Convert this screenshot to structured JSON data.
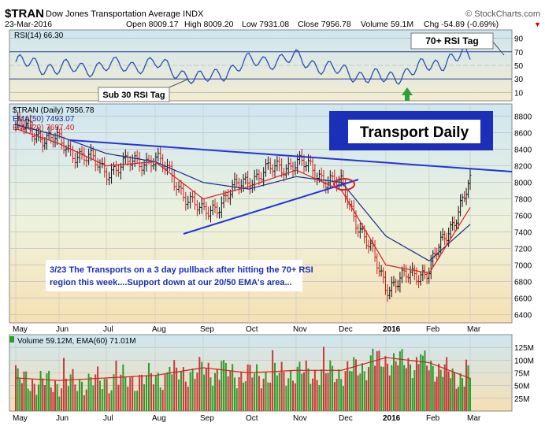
{
  "header": {
    "symbol": "$TRAN",
    "name": "Dow Jones Transportation Average INDX",
    "credit": "© StockCharts.com",
    "date": "23-Mar-2016",
    "open": "Open 8009.17",
    "high": "High 8009.20",
    "low": "Low 7931.08",
    "close": "Close 7956.78",
    "volume": "Volume 59.1M",
    "chg": "Chg -54.89 (-0.69%)",
    "chg_arrow": "▼"
  },
  "colors": {
    "rsi_line": "#2a4fb5",
    "price_up": "#111111",
    "ema50": "#1a2a8a",
    "ema20": "#d42020",
    "trendline": "#2233dd",
    "vol_up": "#2e9a2e",
    "vol_down": "#c43a3a",
    "vol_ema": "#cc2222",
    "title_box": "#1b2fb8",
    "arrow": "#2e9e3a"
  },
  "rsi_panel": {
    "legend": "RSI(14) 66.30",
    "ticks": [
      "90",
      "70",
      "50",
      "30",
      "10"
    ],
    "callout_top": "70+ RSI Tag",
    "callout_bottom": "Sub 30 RSI Tag"
  },
  "price_panel": {
    "legend_main": "$TRAN (Daily) 7956.78",
    "legend_ema50": "EMA(50) 7493.07",
    "legend_ema20": "EMA(20) 7697.40",
    "title_box": "Transport Daily",
    "y_ticks": [
      "8800",
      "8600",
      "8400",
      "8200",
      "8000",
      "7800",
      "7600",
      "7400",
      "7200",
      "7000",
      "6800",
      "6600",
      "6400"
    ],
    "comment": "3/23  The Transports on a 3 day pullback after hitting the 70+ RSI region this week....Support down at our 20/50 EMA's area...",
    "comment_line1": "3/23  The Transports on a 3 day pullback after hitting the 70+ RSI",
    "comment_line2": "region this week....Support down at our 20/50 EMA's area..."
  },
  "volume_panel": {
    "legend": "Volume 59.12M, EMA(60) 71.01M",
    "y_ticks": [
      "125M",
      "100M",
      "75M",
      "50M",
      "25M"
    ]
  },
  "x_axis": {
    "labels": [
      "May",
      "Jun",
      "Jul",
      "Aug",
      "Sep",
      "Oct",
      "Nov",
      "Dec",
      "2016",
      "Feb",
      "Mar"
    ]
  },
  "chart_data": {
    "type": "line",
    "series_kind": "OHLC bars with EMA overlays, RSI and volume sub-panels",
    "x": [
      "2015-05",
      "2015-06",
      "2015-07",
      "2015-08",
      "2015-09",
      "2015-10",
      "2015-11",
      "2015-12",
      "2016-01",
      "2016-02",
      "2016-03"
    ],
    "series": [
      {
        "name": "$TRAN (Daily)",
        "values": [
          8700,
          8480,
          8150,
          8300,
          7600,
          8050,
          8250,
          7950,
          6750,
          6950,
          7960
        ]
      },
      {
        "name": "EMA(50)",
        "values": [
          8700,
          8560,
          8350,
          8250,
          8000,
          7920,
          8070,
          8000,
          7350,
          7050,
          7493
        ]
      },
      {
        "name": "EMA(20)",
        "values": [
          8650,
          8470,
          8200,
          8250,
          7800,
          7950,
          8150,
          7900,
          7000,
          6900,
          7697
        ]
      }
    ],
    "rsi_values": [
      55,
      45,
      48,
      52,
      28,
      55,
      60,
      40,
      30,
      50,
      66
    ],
    "volume_m": [
      60,
      55,
      60,
      65,
      80,
      70,
      75,
      75,
      100,
      90,
      59
    ],
    "ylim": [
      6300,
      8950
    ],
    "rsi_ylim": [
      0,
      100
    ],
    "volume_ylim": [
      0,
      150
    ],
    "last_close": 7956.78,
    "annotations": [
      "70+ RSI Tag",
      "Sub 30 RSI Tag",
      "Transport Daily"
    ]
  }
}
